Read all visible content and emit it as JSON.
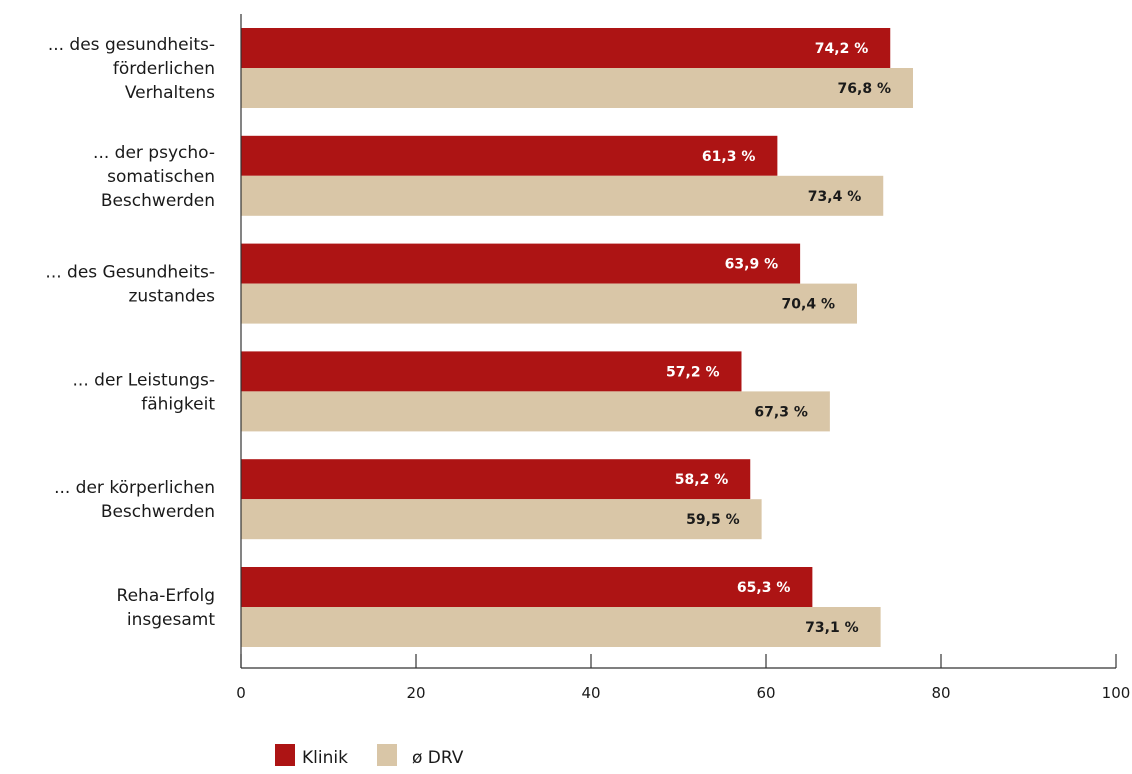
{
  "chart_data": {
    "type": "bar",
    "orientation": "horizontal",
    "categories": [
      [
        "... des gesundheits-",
        "förderlichen",
        "Verhaltens"
      ],
      [
        "... der psycho-",
        "somatischen",
        "Beschwerden"
      ],
      [
        "... des Gesundheits-",
        "zustandes"
      ],
      [
        "... der Leistungs-",
        "fähigkeit"
      ],
      [
        "... der körperlichen",
        "Beschwerden"
      ],
      [
        "Reha-Erfolg",
        "insgesamt"
      ]
    ],
    "series": [
      {
        "name": "Klinik",
        "color": "#ad1414",
        "values": [
          74.2,
          61.3,
          63.9,
          57.2,
          58.2,
          65.3
        ],
        "labels": [
          "74,2 %",
          "61,3 %",
          "63,9 %",
          "57,2 %",
          "58,2 %",
          "65,3 %"
        ]
      },
      {
        "name": "ø DRV",
        "color": "#d9c6a7",
        "values": [
          76.8,
          73.4,
          70.4,
          67.3,
          59.5,
          73.1
        ],
        "labels": [
          "76,8 %",
          "73,4 %",
          "70,4 %",
          "67,3 %",
          "59,5 %",
          "73,1 %"
        ]
      }
    ],
    "xlim": [
      0,
      100
    ],
    "xticks": [
      0,
      20,
      40,
      60,
      80,
      100
    ],
    "xtick_labels": [
      "0",
      "20",
      "40",
      "60",
      "80",
      "100"
    ],
    "grid": false,
    "legend_position": "bottom-left"
  }
}
